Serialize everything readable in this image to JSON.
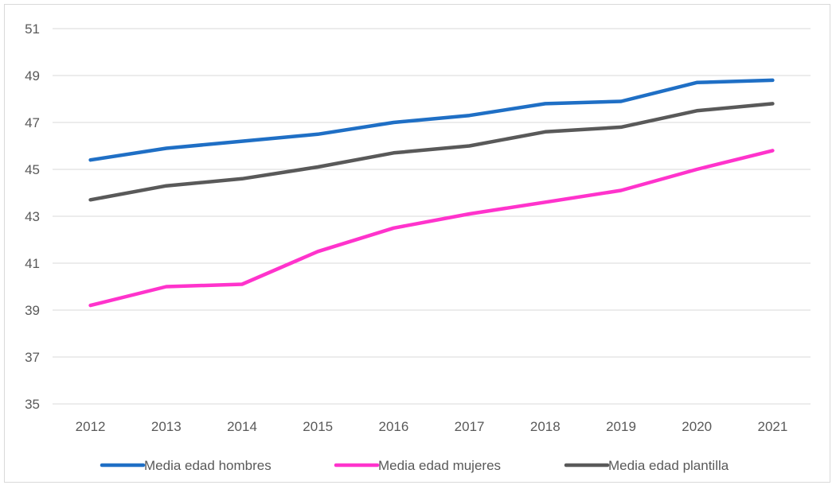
{
  "chart_data": {
    "type": "line",
    "title": "",
    "xlabel": "",
    "ylabel": "",
    "categories": [
      "2012",
      "2013",
      "2014",
      "2015",
      "2016",
      "2017",
      "2018",
      "2019",
      "2020",
      "2021"
    ],
    "ylim": [
      35,
      51
    ],
    "yticks": [
      35,
      37,
      39,
      41,
      43,
      45,
      47,
      49,
      51
    ],
    "grid": true,
    "legend_position": "bottom",
    "series": [
      {
        "name": "Media edad hombres",
        "color": "#1f6fc5",
        "values": [
          45.4,
          45.9,
          46.2,
          46.5,
          47.0,
          47.3,
          47.8,
          47.9,
          48.7,
          48.8
        ]
      },
      {
        "name": "Media edad mujeres",
        "color": "#ff33cc",
        "values": [
          39.2,
          40.0,
          40.1,
          41.5,
          42.5,
          43.1,
          43.6,
          44.1,
          45.0,
          45.8
        ]
      },
      {
        "name": "Media edad plantilla",
        "color": "#595959",
        "values": [
          43.7,
          44.3,
          44.6,
          45.1,
          45.7,
          46.0,
          46.6,
          46.8,
          47.5,
          47.8
        ]
      }
    ]
  }
}
